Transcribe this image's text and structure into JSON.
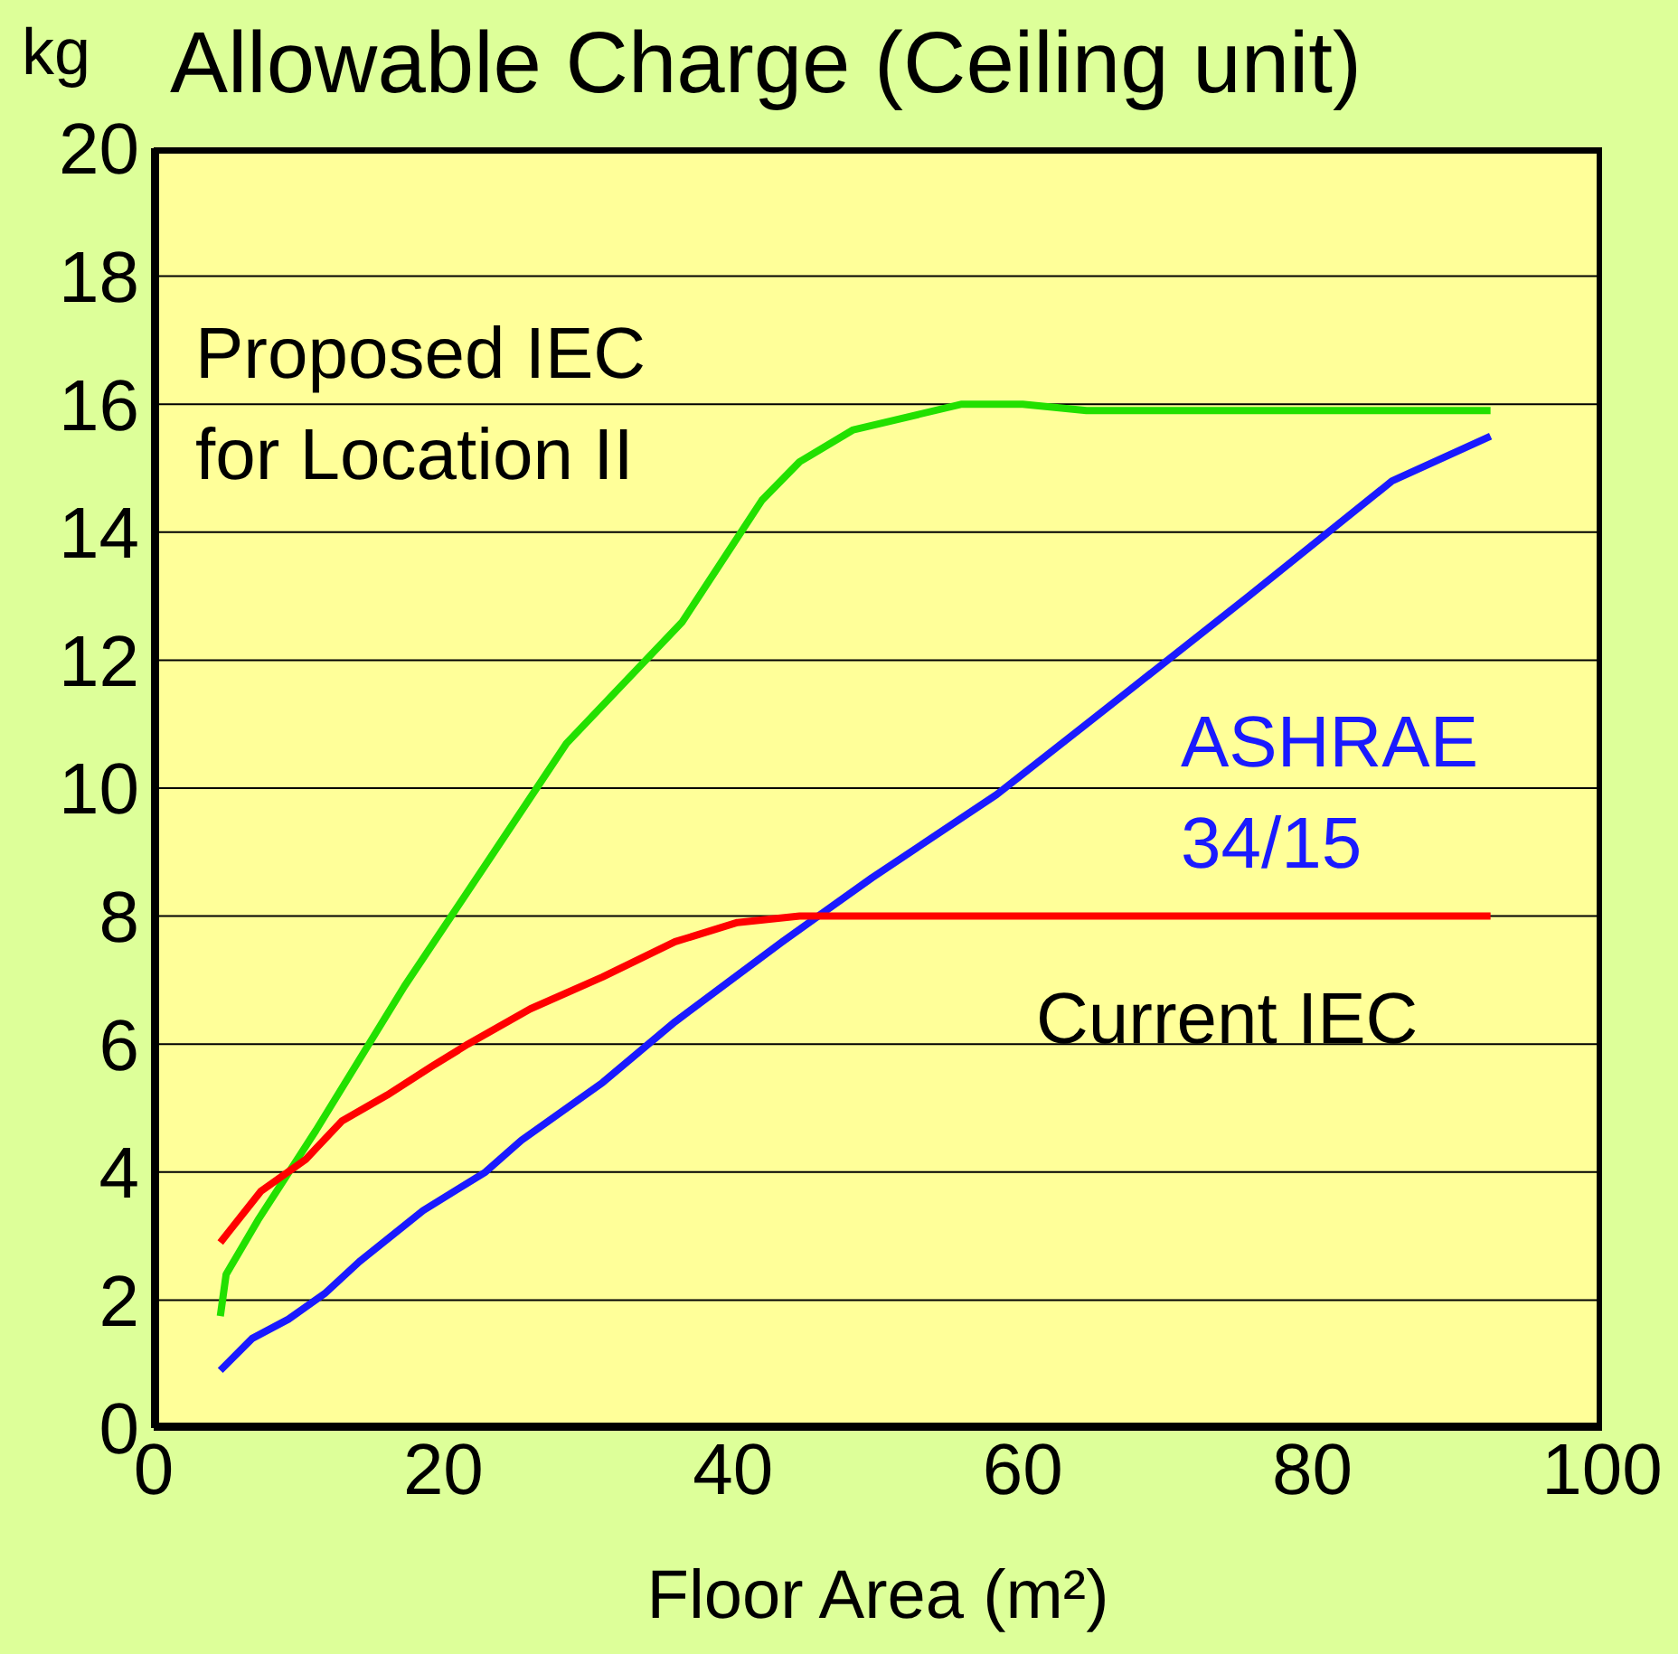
{
  "chart_data": {
    "type": "line",
    "title": "Allowable Charge (Ceiling unit)",
    "xlabel": "Floor Area (m²)",
    "ylabel": "kg",
    "xlim": [
      0,
      100
    ],
    "xticks": [
      0,
      20,
      40,
      60,
      80,
      100
    ],
    "ylim": [
      0,
      20
    ],
    "yticks": [
      0,
      2,
      4,
      6,
      8,
      10,
      12,
      14,
      16,
      18,
      20
    ],
    "grid": "y",
    "legend": false,
    "marker": "none",
    "line_style": "solid",
    "series": [
      {
        "name": "Proposed IEC for Location II",
        "color": "#22e000",
        "x": [
          4.6,
          5,
          7.2,
          11.2,
          17.3,
          23.5,
          28.5,
          36.5,
          42,
          44.6,
          48.3,
          55.8,
          60,
          64.4,
          92.3
        ],
        "values": [
          1.75,
          2.4,
          3.25,
          4.65,
          6.9,
          9.0,
          10.7,
          12.6,
          14.5,
          15.1,
          15.6,
          16.0,
          16.0,
          15.9,
          15.9
        ]
      },
      {
        "name": "ASHRAE 34/15",
        "color": "#1a1aff",
        "x": [
          4.6,
          6.8,
          9.3,
          11.8,
          14.2,
          18.6,
          22.9,
          25.4,
          31,
          36,
          43.4,
          49.6,
          58.2,
          64.4,
          75.6,
          85.5,
          92.3
        ],
        "values": [
          0.9,
          1.4,
          1.7,
          2.1,
          2.6,
          3.4,
          4.0,
          4.5,
          5.4,
          6.35,
          7.6,
          8.6,
          9.9,
          11.0,
          13.0,
          14.8,
          15.5
        ]
      },
      {
        "name": "Current IEC",
        "color": "#ff0000",
        "x": [
          4.6,
          7.4,
          10.5,
          13,
          16.1,
          19.2,
          21.7,
          26,
          31,
          36,
          40.3,
          44.6,
          92.3
        ],
        "values": [
          2.9,
          3.7,
          4.2,
          4.8,
          5.2,
          5.65,
          6.0,
          6.55,
          7.05,
          7.6,
          7.9,
          8.0,
          8.0
        ]
      }
    ]
  }
}
